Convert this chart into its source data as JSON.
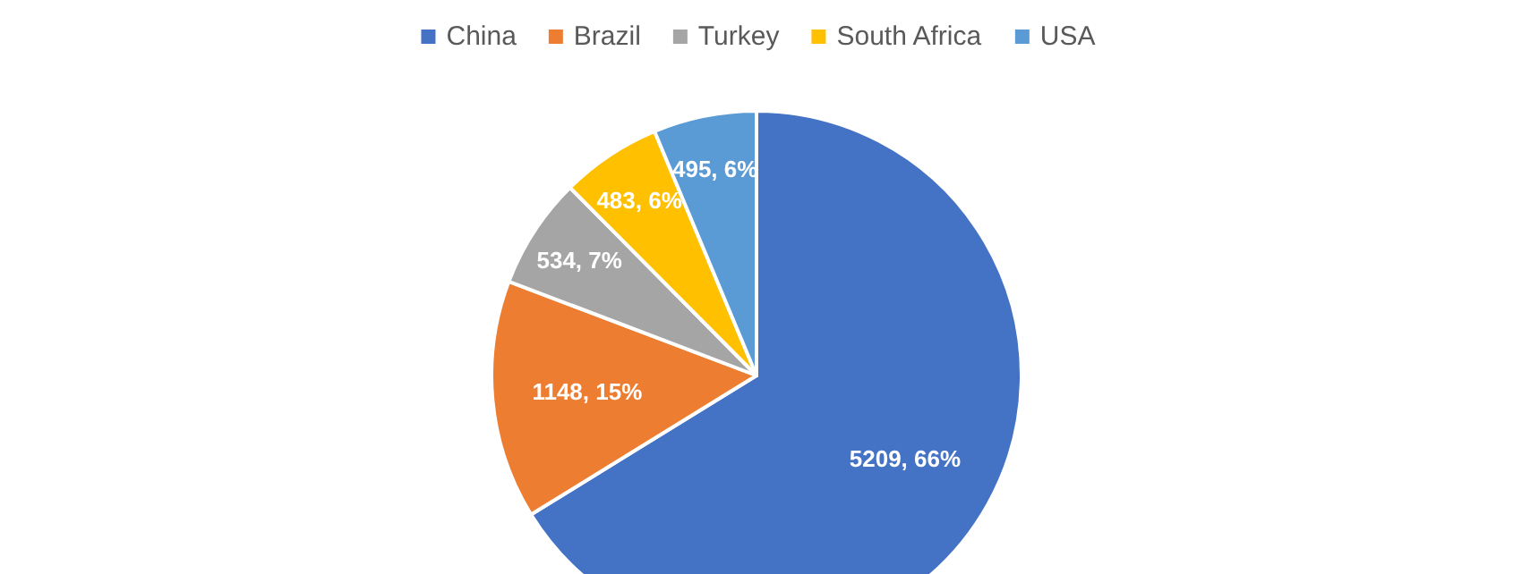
{
  "chart_data": {
    "type": "pie",
    "categories": [
      "China",
      "Brazil",
      "Turkey",
      "South Africa",
      "USA"
    ],
    "values": [
      5209,
      1148,
      534,
      483,
      495
    ],
    "colors": [
      "#4472c4",
      "#ed7d31",
      "#a5a5a5",
      "#ffc000",
      "#5b9bd5"
    ],
    "value_labels": [
      "5209, 66%",
      "1148, 15%",
      "534, 7%",
      "483, 6%",
      "495, 6%"
    ],
    "legend": "top"
  }
}
